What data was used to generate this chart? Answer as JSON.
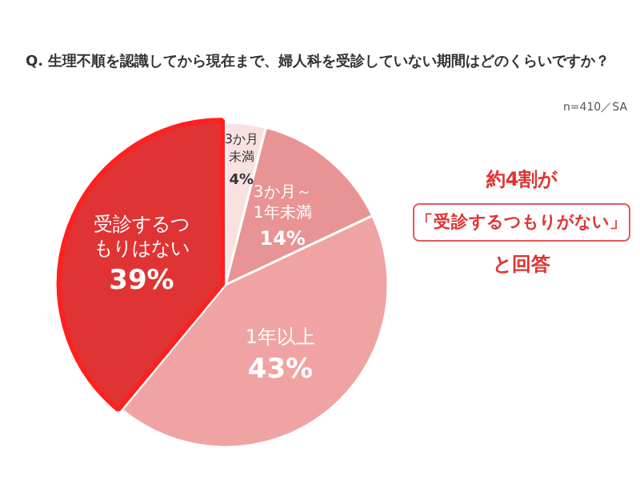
{
  "chart_data": {
    "type": "pie",
    "title": "Q. 生理不順を認識してから現在まで、婦人科を受診していない期間はどのくらいですか？",
    "categories": [
      "3か月未満",
      "3か月～1年未満",
      "1年以上",
      "受診するつもりはない"
    ],
    "values": [
      4,
      14,
      43,
      39
    ],
    "colors": [
      "#f9e1e1",
      "#e89494",
      "#f0a3a3",
      "#e03333"
    ],
    "value_labels": [
      "4%",
      "14%",
      "43%",
      "39%"
    ],
    "annotations": [
      "n=410／SA",
      "約4割が",
      "「受診するつもりがない」",
      "と回答"
    ],
    "legend": false
  }
}
